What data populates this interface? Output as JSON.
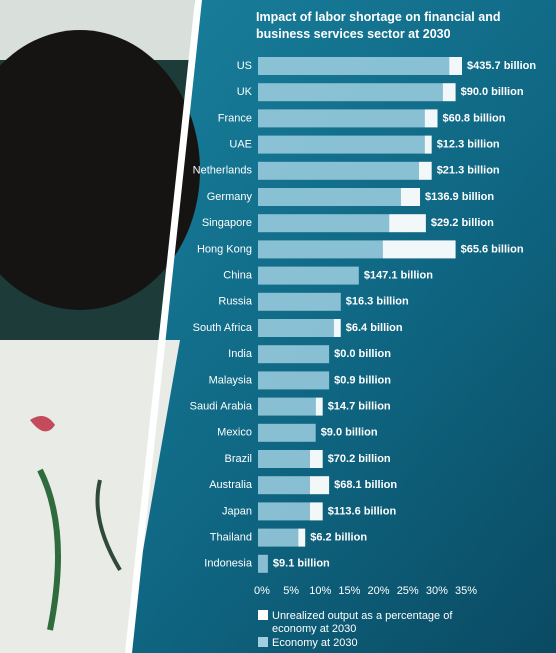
{
  "chart_data": {
    "type": "stacked-barh",
    "title": "Impact of labor shortage on financial and business services sector at 2030",
    "categories": [
      "US",
      "UK",
      "France",
      "UAE",
      "Netherlands",
      "Germany",
      "Singapore",
      "Hong Kong",
      "China",
      "Russia",
      "South Africa",
      "India",
      "Malaysia",
      "Saudi Arabia",
      "Mexico",
      "Brazil",
      "Australia",
      "Japan",
      "Thailand",
      "Indonesia"
    ],
    "series": [
      {
        "name": "Economy at 2030",
        "color": "#9fcfe0",
        "values": [
          32.8,
          31.7,
          28.6,
          28.6,
          27.6,
          24.5,
          22.5,
          21.4,
          17.3,
          14.2,
          13.0,
          12.2,
          12.2,
          9.9,
          9.9,
          8.9,
          8.9,
          8.9,
          6.9,
          1.7
        ]
      },
      {
        "name": "Unrealized output as a percentage of economy at 2030",
        "color": "#ffffff",
        "values": [
          2.2,
          2.2,
          2.2,
          1.2,
          2.2,
          3.3,
          6.3,
          12.5,
          0,
          0,
          1.2,
          0,
          0,
          1.2,
          0,
          2.2,
          3.3,
          2.2,
          1.2,
          0
        ]
      }
    ],
    "amount_labels": [
      "$435.7 billion",
      "$90.0 billion",
      "$60.8 billion",
      "$12.3 billion",
      "$21.3 billion",
      "$136.9 billion",
      "$29.2 billion",
      "$65.6 billion",
      "$147.1 billion",
      "$16.3 billion",
      "$6.4 billion",
      "$0.0 billion",
      "$0.9 billion",
      "$14.7 billion",
      "$9.0 billion",
      "$70.2 billion",
      "$68.1 billion",
      "$113.6 billion",
      "$6.2 billion",
      "$9.1 billion"
    ],
    "xlim": [
      0,
      35
    ],
    "xticks": [
      {
        "value": 0,
        "label": "0%"
      },
      {
        "value": 5,
        "label": "5%"
      },
      {
        "value": 10,
        "label": "10%"
      },
      {
        "value": 15,
        "label": "15%"
      },
      {
        "value": 20,
        "label": "20%"
      },
      {
        "value": 25,
        "label": "25%"
      },
      {
        "value": 30,
        "label": "30%"
      },
      {
        "value": 35,
        "label": "35%"
      }
    ]
  }
}
